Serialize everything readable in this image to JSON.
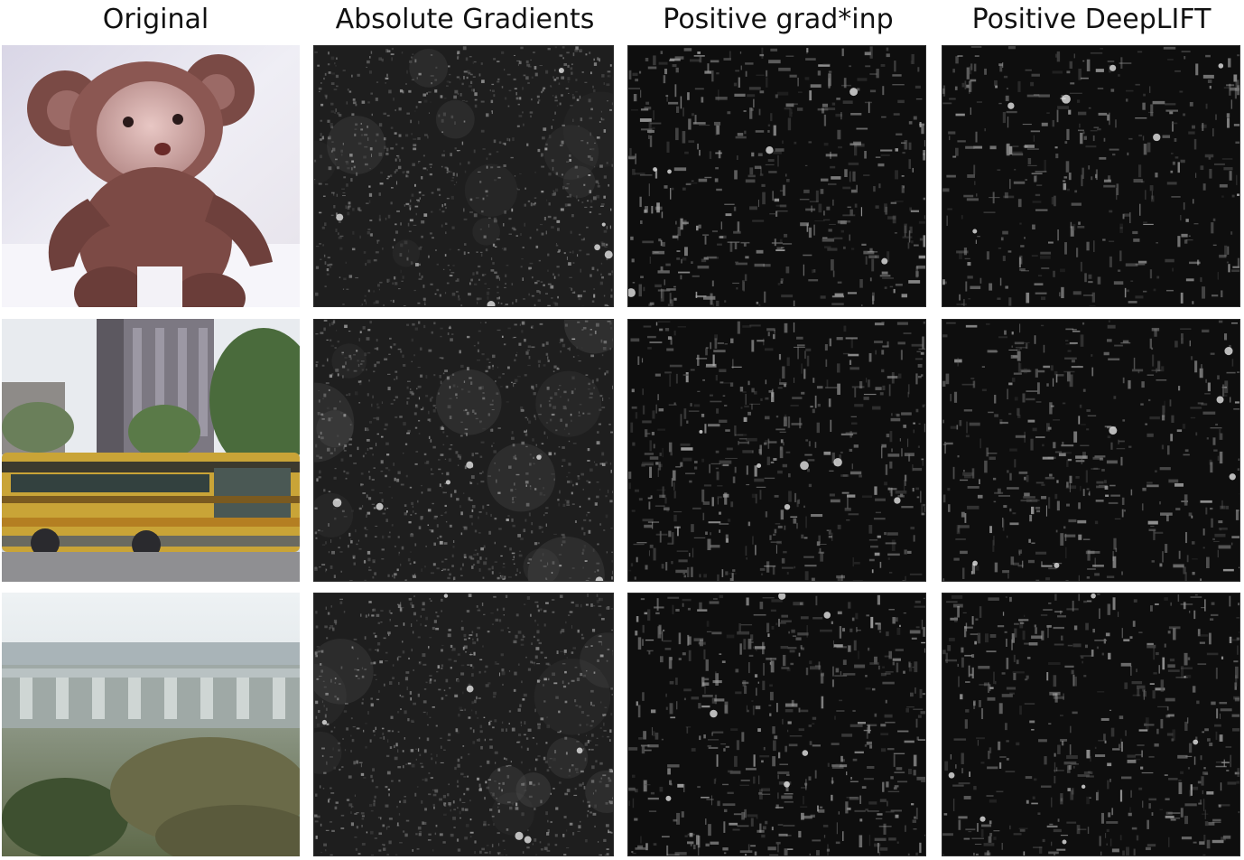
{
  "columns": [
    {
      "title": "Original"
    },
    {
      "title": "Absolute Gradients"
    },
    {
      "title": "Positive grad*inp"
    },
    {
      "title": "Positive DeepLIFT"
    }
  ],
  "rows": [
    {
      "subject": "teddy bear"
    },
    {
      "subject": "school bus"
    },
    {
      "subject": "bridge landscape"
    }
  ],
  "colors": {
    "background": "#ffffff",
    "map_background": "#0c0c0c",
    "map_speckle": "#9a9a9a",
    "title_text": "#111111"
  }
}
